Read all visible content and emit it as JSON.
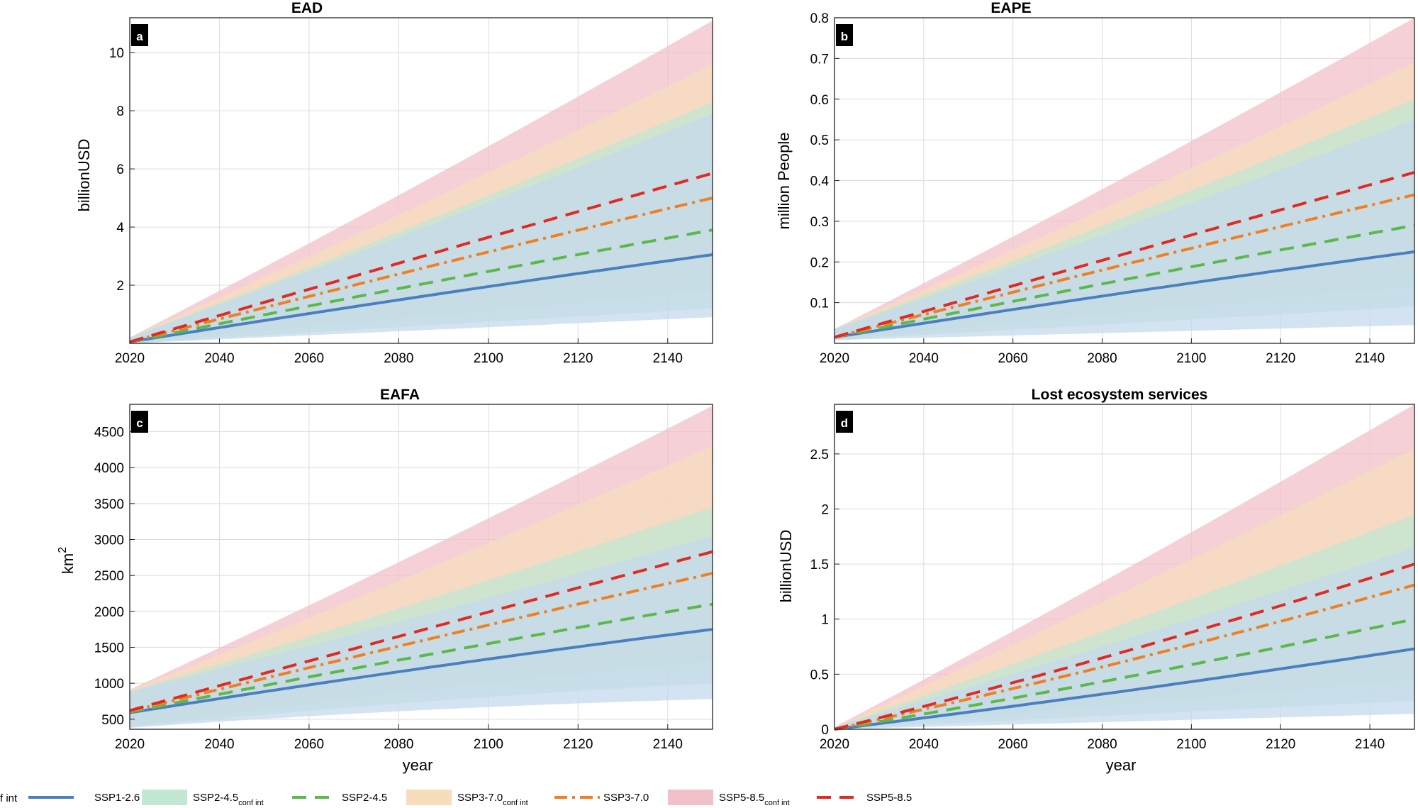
{
  "chart_data": [
    {
      "type": "area",
      "panel": "a",
      "title": "EAD",
      "xlabel": "",
      "ylabel": "billionUSD",
      "xlim": [
        2020,
        2150
      ],
      "ylim": [
        0,
        11.2
      ],
      "xticks": [
        2020,
        2040,
        2060,
        2080,
        2100,
        2120,
        2140
      ],
      "yticks": [
        2,
        4,
        6,
        8,
        10
      ],
      "x": [
        2020,
        2150
      ],
      "series": [
        {
          "name": "SSP1-2.6",
          "values": [
            0.05,
            3.05
          ],
          "lower": [
            0.0,
            0.9
          ],
          "upper": [
            0.2,
            7.9
          ],
          "curve": 0.08
        },
        {
          "name": "SSP2-4.5",
          "values": [
            0.05,
            3.9
          ],
          "lower": [
            0.0,
            1.2
          ],
          "upper": [
            0.2,
            8.3
          ],
          "curve": 0.06
        },
        {
          "name": "SSP3-7.0",
          "values": [
            0.05,
            5.0
          ],
          "lower": [
            0.0,
            1.8
          ],
          "upper": [
            0.2,
            9.6
          ],
          "curve": 0.04
        },
        {
          "name": "SSP5-8.5",
          "values": [
            0.05,
            5.85
          ],
          "lower": [
            0.0,
            2.4
          ],
          "upper": [
            0.2,
            11.1
          ],
          "curve": 0.02
        }
      ]
    },
    {
      "type": "area",
      "panel": "b",
      "title": "EAPE",
      "xlabel": "",
      "ylabel": "million People",
      "xlim": [
        2020,
        2150
      ],
      "ylim": [
        0.0,
        0.8
      ],
      "xticks": [
        2020,
        2040,
        2060,
        2080,
        2100,
        2120,
        2140
      ],
      "yticks": [
        0.1,
        0.2,
        0.3,
        0.4,
        0.5,
        0.6,
        0.7,
        0.8
      ],
      "ytick_labels": [
        "0.1",
        "0.2",
        "0.3",
        "0.4",
        "0.5",
        "0.6",
        "0.7",
        "0.8"
      ],
      "x": [
        2020,
        2150
      ],
      "series": [
        {
          "name": "SSP1-2.6",
          "values": [
            0.015,
            0.225
          ],
          "lower": [
            0.008,
            0.045
          ],
          "upper": [
            0.035,
            0.55
          ],
          "curve": 0.08
        },
        {
          "name": "SSP2-4.5",
          "values": [
            0.015,
            0.29
          ],
          "lower": [
            0.008,
            0.09
          ],
          "upper": [
            0.035,
            0.6
          ],
          "curve": 0.06
        },
        {
          "name": "SSP3-7.0",
          "values": [
            0.015,
            0.365
          ],
          "lower": [
            0.008,
            0.14
          ],
          "upper": [
            0.035,
            0.69
          ],
          "curve": 0.04
        },
        {
          "name": "SSP5-8.5",
          "values": [
            0.015,
            0.42
          ],
          "lower": [
            0.008,
            0.18
          ],
          "upper": [
            0.035,
            0.8
          ],
          "curve": 0.02
        }
      ]
    },
    {
      "type": "area",
      "panel": "c",
      "title": "EAFA",
      "xlabel": "year",
      "ylabel": "km",
      "ylabel_sup": "2",
      "xlim": [
        2020,
        2150
      ],
      "ylim": [
        360,
        4880
      ],
      "xticks": [
        2020,
        2040,
        2060,
        2080,
        2100,
        2120,
        2140
      ],
      "yticks": [
        500,
        1000,
        1500,
        2000,
        2500,
        3000,
        3500,
        4000,
        4500
      ],
      "x": [
        2020,
        2150
      ],
      "series": [
        {
          "name": "SSP1-2.6",
          "values": [
            590,
            1750
          ],
          "lower": [
            380,
            780
          ],
          "upper": [
            880,
            3050
          ],
          "curve": 0.12,
          "lowerCurve": 0.45
        },
        {
          "name": "SSP2-4.5",
          "values": [
            600,
            2100
          ],
          "lower": [
            390,
            1000
          ],
          "upper": [
            890,
            3450
          ],
          "curve": 0.08,
          "lowerCurve": 0.3
        },
        {
          "name": "SSP3-7.0",
          "values": [
            610,
            2530
          ],
          "lower": [
            400,
            1300
          ],
          "upper": [
            900,
            4300
          ],
          "curve": 0.04,
          "lowerCurve": 0.2
        },
        {
          "name": "SSP5-8.5",
          "values": [
            620,
            2830
          ],
          "lower": [
            410,
            1500
          ],
          "upper": [
            910,
            4860
          ],
          "curve": 0.02,
          "lowerCurve": 0.1
        }
      ]
    },
    {
      "type": "area",
      "panel": "d",
      "title": "Lost ecosystem services",
      "xlabel": "year",
      "ylabel": "billionUSD",
      "xlim": [
        2020,
        2150
      ],
      "ylim": [
        0,
        2.95
      ],
      "xticks": [
        2020,
        2040,
        2060,
        2080,
        2100,
        2120,
        2140
      ],
      "yticks": [
        0,
        0.5,
        1,
        1.5,
        2,
        2.5
      ],
      "ytick_labels": [
        "0",
        "0.5",
        "1",
        "1.5",
        "2",
        "2.5"
      ],
      "x": [
        2020,
        2150
      ],
      "series": [
        {
          "name": "SSP1-2.6",
          "values": [
            0.0,
            0.73
          ],
          "lower": [
            0.0,
            0.14
          ],
          "upper": [
            0.02,
            1.65
          ],
          "curve": -0.1
        },
        {
          "name": "SSP2-4.5",
          "values": [
            0.0,
            1.0
          ],
          "lower": [
            0.0,
            0.26
          ],
          "upper": [
            0.02,
            1.95
          ],
          "curve": -0.12
        },
        {
          "name": "SSP3-7.0",
          "values": [
            0.0,
            1.31
          ],
          "lower": [
            0.0,
            0.45
          ],
          "upper": [
            0.02,
            2.55
          ],
          "curve": -0.12
        },
        {
          "name": "SSP5-8.5",
          "values": [
            0.0,
            1.5
          ],
          "lower": [
            0.0,
            0.58
          ],
          "upper": [
            0.02,
            2.95
          ],
          "curve": -0.12
        }
      ]
    }
  ],
  "series_styles": {
    "SSP1-2.6": {
      "line": "#4a7fc0",
      "fill": "#c4d9ec",
      "dash": ""
    },
    "SSP2-4.5": {
      "line": "#5cb84a",
      "fill": "#c2e7d3",
      "dash": "20,12"
    },
    "SSP3-7.0": {
      "line": "#f07f23",
      "fill": "#f7ddbc",
      "dash": "18,7,4,7"
    },
    "SSP5-8.5": {
      "line": "#e02a23",
      "fill": "#f1c0c9",
      "dash": "20,12"
    }
  },
  "legend": {
    "partial_first": "f int",
    "items": [
      {
        "label": "SSP1-2.6",
        "sub": "",
        "kind": "line",
        "series": "SSP1-2.6"
      },
      {
        "label": "SSP2-4.5",
        "sub": "conf int",
        "kind": "patch",
        "series": "SSP2-4.5"
      },
      {
        "label": "SSP2-4.5",
        "sub": "",
        "kind": "line",
        "series": "SSP2-4.5"
      },
      {
        "label": "SSP3-7.0",
        "sub": "conf int",
        "kind": "patch",
        "series": "SSP3-7.0"
      },
      {
        "label": "SSP3-7.0",
        "sub": "",
        "kind": "line",
        "series": "SSP3-7.0"
      },
      {
        "label": "SSP5-8.5",
        "sub": "conf int",
        "kind": "patch",
        "series": "SSP5-8.5"
      },
      {
        "label": "SSP5-8.5",
        "sub": "",
        "kind": "line",
        "series": "SSP5-8.5"
      }
    ]
  }
}
